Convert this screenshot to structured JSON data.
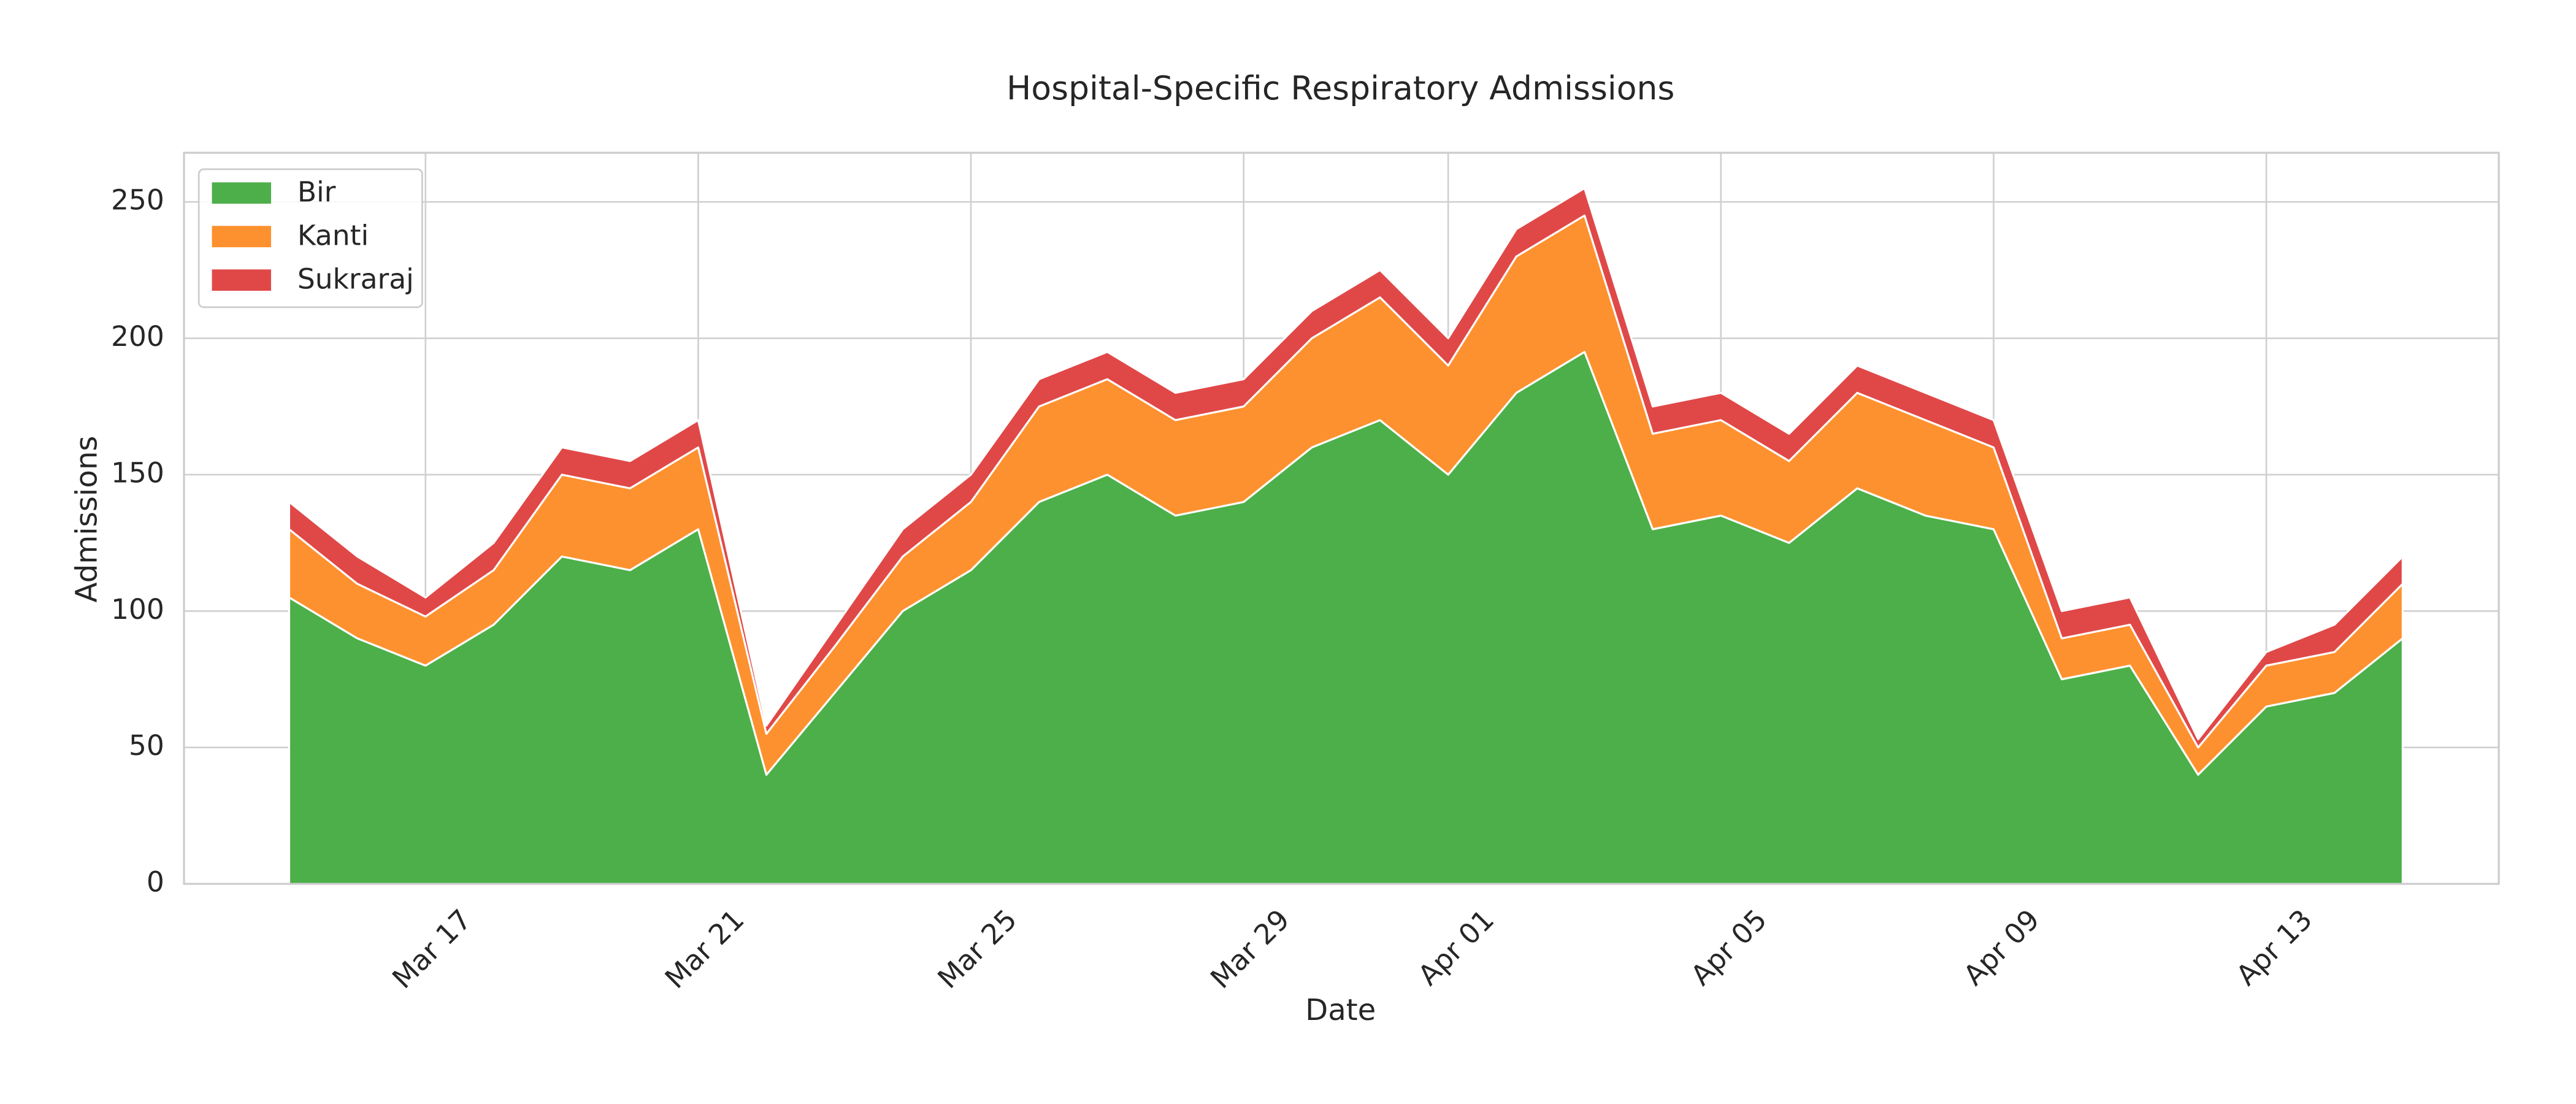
{
  "chart_data": {
    "type": "stacked_area",
    "title": "Hospital-Specific Respiratory Admissions",
    "xlabel": "Date",
    "ylabel": "Admissions",
    "x": [
      "Mar 15",
      "Mar 16",
      "Mar 17",
      "Mar 18",
      "Mar 19",
      "Mar 20",
      "Mar 21",
      "Mar 22",
      "Mar 23",
      "Mar 24",
      "Mar 25",
      "Mar 26",
      "Mar 27",
      "Mar 28",
      "Mar 29",
      "Mar 30",
      "Mar 31",
      "Apr 01",
      "Apr 02",
      "Apr 03",
      "Apr 04",
      "Apr 05",
      "Apr 06",
      "Apr 07",
      "Apr 08",
      "Apr 09",
      "Apr 10",
      "Apr 11",
      "Apr 12",
      "Apr 13",
      "Apr 14",
      "Apr 15"
    ],
    "xticks": [
      "Mar 17",
      "Mar 21",
      "Mar 25",
      "Mar 29",
      "Apr 01",
      "Apr 05",
      "Apr 09",
      "Apr 13"
    ],
    "series": [
      {
        "name": "Bir",
        "color": "#4daf4a",
        "values": [
          105,
          90,
          80,
          95,
          120,
          115,
          130,
          40,
          70,
          100,
          115,
          140,
          150,
          135,
          140,
          160,
          170,
          150,
          180,
          195,
          130,
          135,
          125,
          145,
          135,
          130,
          75,
          80,
          40,
          65,
          70,
          90
        ]
      },
      {
        "name": "Kanti",
        "color": "#fe912f",
        "values": [
          25,
          20,
          18,
          20,
          30,
          30,
          30,
          15,
          17,
          20,
          25,
          35,
          35,
          35,
          35,
          40,
          45,
          40,
          50,
          50,
          35,
          35,
          30,
          35,
          35,
          30,
          15,
          15,
          10,
          15,
          15,
          20
        ]
      },
      {
        "name": "Sukraraj",
        "color": "#e04848",
        "values": [
          10,
          10,
          7,
          10,
          10,
          10,
          10,
          3,
          7,
          10,
          10,
          10,
          10,
          10,
          10,
          10,
          10,
          10,
          10,
          10,
          10,
          10,
          10,
          10,
          10,
          10,
          10,
          10,
          3,
          5,
          10,
          10
        ]
      }
    ],
    "ylim": [
      0,
      268
    ],
    "yticks": [
      0,
      50,
      100,
      150,
      200,
      250
    ],
    "grid": true,
    "legend": "upper left"
  }
}
